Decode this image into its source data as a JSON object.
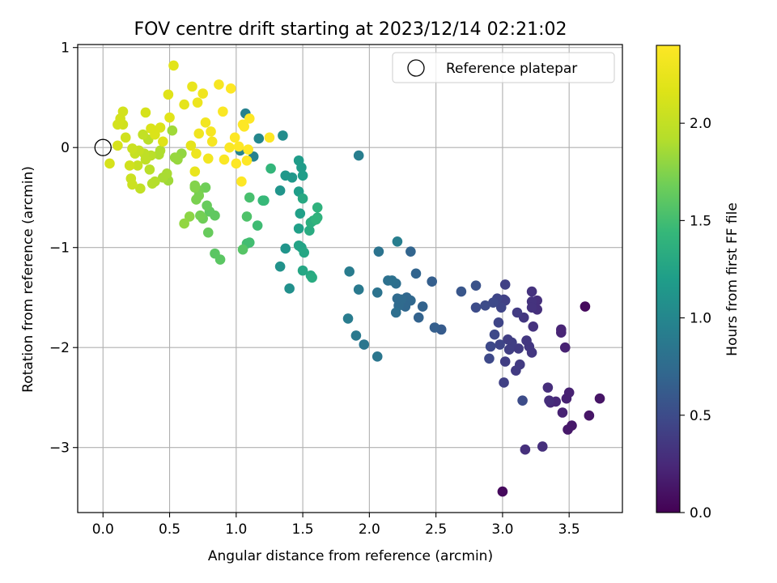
{
  "chart_data": {
    "type": "scatter",
    "title": "FOV centre drift starting at 2023/12/14 02:21:02",
    "xlabel": "Angular distance from reference (arcmin)",
    "ylabel": "Rotation from reference (arcmin)",
    "xlim": [
      -0.19,
      3.9
    ],
    "ylim": [
      -3.65,
      1.03
    ],
    "xticks": [
      0.0,
      0.5,
      1.0,
      1.5,
      2.0,
      2.5,
      3.0,
      3.5
    ],
    "xtick_labels": [
      "0.0",
      "0.5",
      "1.0",
      "1.5",
      "2.0",
      "2.5",
      "3.0",
      "3.5"
    ],
    "yticks": [
      -3,
      -2,
      -1,
      0,
      1
    ],
    "ytick_labels": [
      "−3",
      "−2",
      "−1",
      "0",
      "1"
    ],
    "grid": true,
    "legend": {
      "position": "top-right",
      "entries": [
        "Reference platepar"
      ]
    },
    "reference_point": {
      "x": 0.0,
      "y": 0.0,
      "label": "Reference platepar"
    },
    "colorbar": {
      "label": "Hours from first FF file",
      "colormap": "viridis",
      "range": [
        0.0,
        2.4
      ],
      "ticks": [
        0.0,
        0.5,
        1.0,
        1.5,
        2.0
      ],
      "tick_labels": [
        "0.0",
        "0.5",
        "1.0",
        "1.5",
        "2.0"
      ]
    },
    "points": [
      [
        3.62,
        -1.59,
        0.05
      ],
      [
        3.0,
        -3.44,
        0.05
      ],
      [
        3.73,
        -2.51,
        0.12
      ],
      [
        3.65,
        -2.68,
        0.12
      ],
      [
        3.52,
        -2.78,
        0.14
      ],
      [
        3.49,
        -2.82,
        0.14
      ],
      [
        3.5,
        -2.45,
        0.2
      ],
      [
        3.48,
        -2.51,
        0.2
      ],
      [
        3.45,
        -2.65,
        0.2
      ],
      [
        3.47,
        -2.0,
        0.2
      ],
      [
        3.44,
        -1.82,
        0.22
      ],
      [
        3.44,
        -1.85,
        0.22
      ],
      [
        3.4,
        -2.54,
        0.25
      ],
      [
        3.36,
        -2.55,
        0.25
      ],
      [
        3.34,
        -2.4,
        0.28
      ],
      [
        3.35,
        -2.53,
        0.28
      ],
      [
        3.3,
        -2.99,
        0.3
      ],
      [
        3.17,
        -3.02,
        0.3
      ],
      [
        3.26,
        -1.53,
        0.3
      ],
      [
        3.26,
        -1.62,
        0.3
      ],
      [
        3.22,
        -1.44,
        0.32
      ],
      [
        3.22,
        -1.54,
        0.32
      ],
      [
        3.22,
        -1.6,
        0.32
      ],
      [
        3.23,
        -1.79,
        0.32
      ],
      [
        3.22,
        -2.05,
        0.35
      ],
      [
        3.2,
        -1.99,
        0.35
      ],
      [
        3.18,
        -1.93,
        0.35
      ],
      [
        3.16,
        -1.7,
        0.35
      ],
      [
        3.11,
        -1.65,
        0.38
      ],
      [
        3.12,
        -2.01,
        0.38
      ],
      [
        3.13,
        -2.17,
        0.38
      ],
      [
        3.1,
        -2.23,
        0.38
      ],
      [
        3.07,
        -1.95,
        0.4
      ],
      [
        3.05,
        -2.02,
        0.4
      ],
      [
        3.04,
        -1.92,
        0.4
      ],
      [
        3.02,
        -2.14,
        0.4
      ],
      [
        3.01,
        -2.35,
        0.42
      ],
      [
        3.02,
        -1.53,
        0.42
      ],
      [
        3.02,
        -1.37,
        0.42
      ],
      [
        3.01,
        -1.52,
        0.42
      ],
      [
        2.99,
        -1.6,
        0.45
      ],
      [
        2.98,
        -1.97,
        0.45
      ],
      [
        2.97,
        -1.75,
        0.45
      ],
      [
        2.96,
        -1.51,
        0.45
      ],
      [
        2.94,
        -1.87,
        0.48
      ],
      [
        2.93,
        -1.55,
        0.48
      ],
      [
        2.91,
        -1.99,
        0.48
      ],
      [
        2.9,
        -2.11,
        0.48
      ],
      [
        3.15,
        -2.53,
        0.5
      ],
      [
        2.87,
        -1.58,
        0.5
      ],
      [
        2.8,
        -1.6,
        0.5
      ],
      [
        2.8,
        -1.38,
        0.55
      ],
      [
        2.69,
        -1.44,
        0.58
      ],
      [
        2.54,
        -1.82,
        0.62
      ],
      [
        2.49,
        -1.8,
        0.65
      ],
      [
        2.47,
        -1.34,
        0.65
      ],
      [
        2.4,
        -1.59,
        0.68
      ],
      [
        2.37,
        -1.7,
        0.68
      ],
      [
        2.35,
        -1.26,
        0.7
      ],
      [
        2.31,
        -1.04,
        0.7
      ],
      [
        2.31,
        -1.53,
        0.72
      ],
      [
        2.28,
        -1.5,
        0.72
      ],
      [
        2.27,
        -1.59,
        0.72
      ],
      [
        2.24,
        -1.52,
        0.75
      ],
      [
        2.22,
        -1.58,
        0.75
      ],
      [
        2.21,
        -1.51,
        0.75
      ],
      [
        2.2,
        -1.36,
        0.78
      ],
      [
        2.2,
        -1.65,
        0.78
      ],
      [
        2.17,
        -1.33,
        0.8
      ],
      [
        2.14,
        -1.33,
        0.8
      ],
      [
        2.07,
        -1.04,
        0.82
      ],
      [
        2.06,
        -1.45,
        0.82
      ],
      [
        2.06,
        -2.09,
        0.85
      ],
      [
        1.96,
        -1.97,
        0.85
      ],
      [
        1.92,
        -1.42,
        0.88
      ],
      [
        1.9,
        -1.88,
        0.88
      ],
      [
        1.84,
        -1.71,
        0.9
      ],
      [
        1.85,
        -1.24,
        0.9
      ],
      [
        2.21,
        -0.94,
        0.92
      ],
      [
        1.92,
        -0.08,
        0.92
      ],
      [
        1.13,
        -0.09,
        0.95
      ],
      [
        1.07,
        0.34,
        0.95
      ],
      [
        1.03,
        -0.03,
        0.98
      ],
      [
        1.17,
        0.09,
        1.0
      ],
      [
        1.35,
        0.12,
        1.05
      ],
      [
        1.4,
        -1.41,
        1.08
      ],
      [
        1.33,
        -1.19,
        1.1
      ],
      [
        1.37,
        -1.01,
        1.12
      ],
      [
        1.33,
        -0.43,
        1.12
      ],
      [
        1.37,
        -0.28,
        1.15
      ],
      [
        1.42,
        -0.3,
        1.15
      ],
      [
        1.47,
        -0.13,
        1.18
      ],
      [
        1.49,
        -0.2,
        1.18
      ],
      [
        1.5,
        -0.28,
        1.2
      ],
      [
        1.47,
        -0.44,
        1.2
      ],
      [
        1.48,
        -0.66,
        1.22
      ],
      [
        1.47,
        -0.81,
        1.22
      ],
      [
        1.47,
        -0.98,
        1.25
      ],
      [
        1.49,
        -1.0,
        1.25
      ],
      [
        1.5,
        -1.23,
        1.28
      ],
      [
        1.51,
        -1.05,
        1.28
      ],
      [
        1.5,
        -0.51,
        1.3
      ],
      [
        1.56,
        -1.28,
        1.3
      ],
      [
        1.57,
        -1.3,
        1.32
      ],
      [
        1.55,
        -0.83,
        1.32
      ],
      [
        1.56,
        -0.75,
        1.35
      ],
      [
        1.58,
        -0.73,
        1.35
      ],
      [
        1.61,
        -0.7,
        1.38
      ],
      [
        1.61,
        -0.6,
        1.38
      ],
      [
        1.6,
        -0.72,
        1.4
      ],
      [
        1.26,
        -0.21,
        1.42
      ],
      [
        1.21,
        -0.53,
        1.45
      ],
      [
        1.2,
        -0.53,
        1.45
      ],
      [
        1.16,
        -0.78,
        1.48
      ],
      [
        1.1,
        -0.95,
        1.5
      ],
      [
        1.08,
        -0.96,
        1.5
      ],
      [
        1.1,
        -0.5,
        1.52
      ],
      [
        1.08,
        -0.69,
        1.55
      ],
      [
        1.05,
        -1.02,
        1.58
      ],
      [
        0.88,
        -1.12,
        1.6
      ],
      [
        0.84,
        -1.06,
        1.6
      ],
      [
        0.84,
        -0.68,
        1.62
      ],
      [
        0.8,
        -0.64,
        1.62
      ],
      [
        0.79,
        -0.85,
        1.65
      ],
      [
        0.78,
        -0.58,
        1.65
      ],
      [
        0.77,
        -0.4,
        1.68
      ],
      [
        0.75,
        -0.71,
        1.68
      ],
      [
        0.73,
        -0.68,
        1.7
      ],
      [
        0.72,
        -0.43,
        1.7
      ],
      [
        0.72,
        -0.48,
        1.72
      ],
      [
        0.7,
        -0.52,
        1.72
      ],
      [
        0.69,
        -0.4,
        1.75
      ],
      [
        0.69,
        -0.38,
        1.75
      ],
      [
        0.65,
        -0.69,
        1.78
      ],
      [
        0.61,
        -0.76,
        1.8
      ],
      [
        0.59,
        -0.06,
        1.8
      ],
      [
        0.56,
        -0.12,
        1.82
      ],
      [
        0.54,
        -0.1,
        1.82
      ],
      [
        0.52,
        0.17,
        1.85
      ],
      [
        0.49,
        -0.33,
        1.85
      ],
      [
        0.48,
        -0.26,
        1.88
      ],
      [
        0.45,
        -0.3,
        1.88
      ],
      [
        0.43,
        -0.03,
        1.9
      ],
      [
        0.42,
        -0.07,
        1.9
      ],
      [
        0.39,
        -0.34,
        1.92
      ],
      [
        0.37,
        -0.36,
        1.92
      ],
      [
        0.36,
        -0.08,
        1.95
      ],
      [
        0.35,
        -0.22,
        1.95
      ],
      [
        0.34,
        0.08,
        1.95
      ],
      [
        0.32,
        -0.12,
        1.98
      ],
      [
        0.31,
        -0.06,
        1.98
      ],
      [
        0.3,
        0.13,
        2.0
      ],
      [
        0.28,
        -0.41,
        2.0
      ],
      [
        0.27,
        -0.03,
        2.02
      ],
      [
        0.26,
        -0.18,
        2.02
      ],
      [
        0.24,
        -0.06,
        2.02
      ],
      [
        0.22,
        -0.01,
        2.05
      ],
      [
        0.22,
        -0.37,
        2.05
      ],
      [
        0.21,
        -0.31,
        2.05
      ],
      [
        0.2,
        -0.18,
        2.08
      ],
      [
        0.17,
        0.1,
        2.08
      ],
      [
        0.15,
        0.23,
        2.08
      ],
      [
        0.15,
        0.36,
        2.1
      ],
      [
        0.13,
        0.29,
        2.1
      ],
      [
        0.11,
        0.23,
        2.1
      ],
      [
        0.11,
        0.02,
        2.12
      ],
      [
        0.05,
        -0.16,
        2.12
      ],
      [
        0.32,
        0.35,
        2.12
      ],
      [
        0.36,
        0.19,
        2.15
      ],
      [
        0.39,
        0.13,
        2.15
      ],
      [
        0.43,
        0.2,
        2.15
      ],
      [
        0.45,
        0.06,
        2.18
      ],
      [
        0.49,
        0.53,
        2.18
      ],
      [
        0.5,
        0.3,
        2.2
      ],
      [
        0.53,
        0.82,
        2.2
      ],
      [
        0.61,
        0.43,
        2.22
      ],
      [
        0.66,
        0.02,
        2.22
      ],
      [
        0.67,
        0.61,
        2.25
      ],
      [
        0.69,
        -0.24,
        2.25
      ],
      [
        0.7,
        -0.06,
        2.28
      ],
      [
        0.71,
        0.45,
        2.28
      ],
      [
        0.72,
        0.14,
        2.3
      ],
      [
        0.75,
        0.54,
        2.3
      ],
      [
        0.77,
        0.25,
        2.32
      ],
      [
        0.79,
        -0.11,
        2.32
      ],
      [
        0.81,
        0.16,
        2.35
      ],
      [
        0.82,
        0.06,
        2.35
      ],
      [
        0.87,
        0.63,
        2.35
      ],
      [
        0.9,
        0.36,
        2.38
      ],
      [
        0.91,
        -0.12,
        2.38
      ],
      [
        0.95,
        0.0,
        2.38
      ],
      [
        0.96,
        0.59,
        2.4
      ],
      [
        0.99,
        0.1,
        2.4
      ],
      [
        1.0,
        -0.16,
        2.4
      ],
      [
        1.02,
        0.01,
        2.4
      ],
      [
        1.04,
        -0.34,
        2.4
      ],
      [
        1.05,
        0.23,
        2.4
      ],
      [
        1.06,
        0.21,
        2.4
      ],
      [
        1.08,
        -0.13,
        2.4
      ],
      [
        1.09,
        -0.02,
        2.4
      ],
      [
        1.1,
        0.29,
        2.4
      ],
      [
        1.25,
        0.1,
        2.4
      ]
    ]
  }
}
